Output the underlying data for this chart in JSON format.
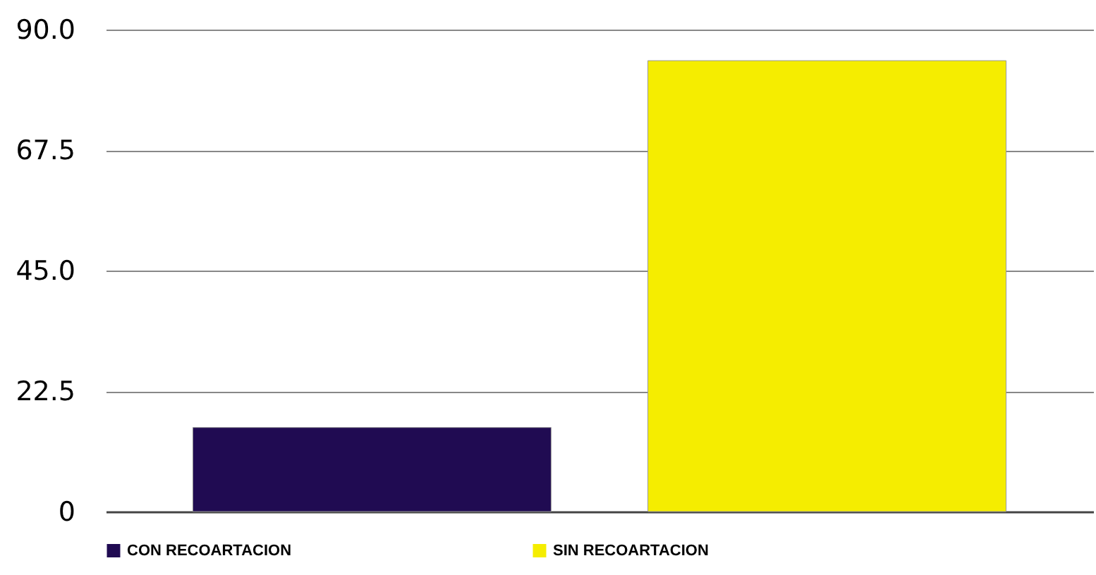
{
  "chart_data": {
    "type": "bar",
    "categories": [
      null,
      null
    ],
    "series": [
      {
        "name": "CON RECOARTACION",
        "color": "#200b52",
        "values": [
          15.7,
          null
        ]
      },
      {
        "name": "SIN RECOARTACION",
        "color": "#f5ed00",
        "values": [
          null,
          84.2
        ]
      }
    ],
    "ylim": [
      0,
      90
    ],
    "yticks": [
      0,
      22.5,
      {
        "value": 45,
        "label": "45.0"
      },
      67.5,
      {
        "value": 90,
        "label": "90.0"
      }
    ],
    "grid": "y",
    "legend": "bottom"
  }
}
